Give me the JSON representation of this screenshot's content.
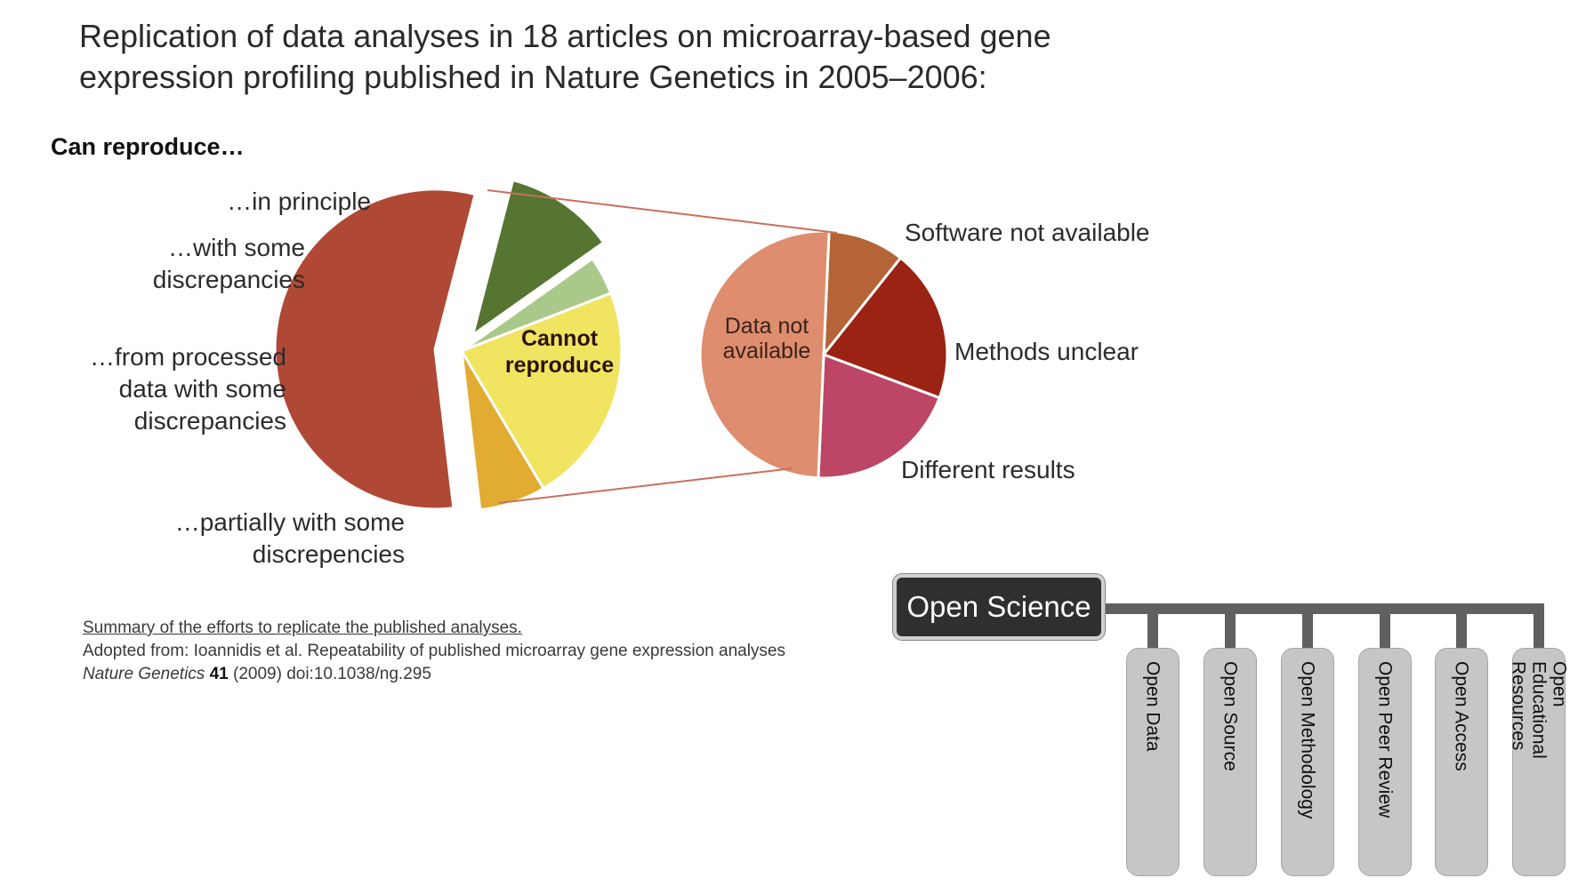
{
  "title_line1": "Replication of data analyses in 18 articles on microarray-based gene",
  "title_line2": "expression profiling published in Nature Genetics in 2005–2006:",
  "subhead": "Can reproduce…",
  "chart_data": [
    {
      "type": "pie",
      "title": "Can reproduce…",
      "slices": [
        {
          "label": "…in principle",
          "value": 2,
          "color": "#557531"
        },
        {
          "label": "…with some discrepancies",
          "value": 0.7,
          "color": "#a9c98a"
        },
        {
          "label": "…from processed data with some discrepancies",
          "value": 4,
          "color": "#f0e461"
        },
        {
          "label": "…partially with some discrepencies",
          "value": 1.2,
          "color": "#e2ac32"
        },
        {
          "label": "Cannot reproduce",
          "value": 10,
          "color": "#b04836"
        }
      ]
    },
    {
      "type": "pie",
      "title": "Cannot reproduce",
      "slices": [
        {
          "label": "Software not available",
          "value": 1,
          "color": "#b46437"
        },
        {
          "label": "Methods unclear",
          "value": 2,
          "color": "#9a2313"
        },
        {
          "label": "Different results",
          "value": 2,
          "color": "#bd4566"
        },
        {
          "label": "Data not available",
          "value": 5,
          "color": "#de8d6e"
        }
      ]
    }
  ],
  "labels": {
    "in_principle": "…in principle",
    "some_disc_1": "…with some",
    "some_disc_2": "discrepancies",
    "processed_1": "…from processed",
    "processed_2": "data with some",
    "processed_3": "discrepancies",
    "partial_1": "…partially with some",
    "partial_2": "discrepencies",
    "cannot_1": "Cannot",
    "cannot_2": "reproduce",
    "data_na_1": "Data not",
    "data_na_2": "available",
    "software_na": "Software not available",
    "methods_unclear": "Methods unclear",
    "different_results": "Different results"
  },
  "reference": {
    "summary": "Summary of the efforts to replicate the published analyses.",
    "adopted": "Adopted from: Ioannidis et al. Repeatability of published microarray gene expression analyses",
    "journal": "Nature Genetics",
    "volume": "41",
    "rest": " (2009) doi:10.1038/ng.295"
  },
  "open_science": {
    "root": "Open Science",
    "branches": [
      "Open Data",
      "Open Source",
      "Open Methodology",
      "Open Peer Review",
      "Open Access",
      "Open Educational Resources"
    ]
  },
  "colors": {
    "connector": "#c7705c",
    "tree": "#606060",
    "pill": "#c6c6c6",
    "root_box": "#2f2f2f"
  }
}
